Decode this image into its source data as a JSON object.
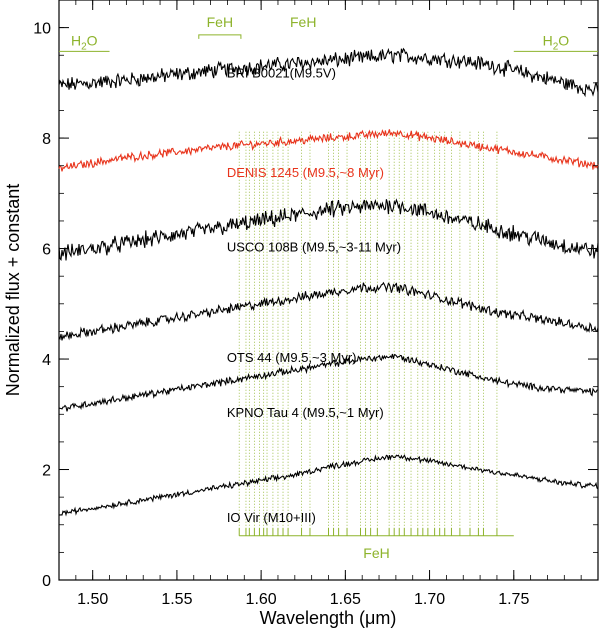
{
  "chart_data": {
    "type": "line",
    "title": "",
    "xlabel": "Wavelength (",
    "xlabel_unit": "μm",
    "xlabel_close": ")",
    "ylabel": "Normalized flux + constant",
    "xlim": [
      1.48,
      1.8
    ],
    "ylim": [
      0,
      10.5
    ],
    "x_ticks": [
      "1.50",
      "1.55",
      "1.60",
      "1.65",
      "1.70",
      "1.75"
    ],
    "y_ticks": [
      "0",
      "2",
      "4",
      "6",
      "8",
      "10"
    ],
    "colors": {
      "black": "#000000",
      "red": "#e8341c",
      "olive": "#8db32b",
      "axis": "#000000"
    },
    "series": [
      {
        "name": "BRI B0021(M9.5V)",
        "color": "#000000",
        "noise": 0.11,
        "label_xy": [
          1.62,
          9.1
        ],
        "x": [
          1.48,
          1.5,
          1.52,
          1.55,
          1.58,
          1.6,
          1.62,
          1.64,
          1.66,
          1.68,
          1.7,
          1.72,
          1.74,
          1.76,
          1.78,
          1.8
        ],
        "values": [
          8.95,
          9.0,
          9.05,
          9.15,
          9.25,
          9.3,
          9.35,
          9.4,
          9.45,
          9.5,
          9.45,
          9.4,
          9.3,
          9.15,
          9.0,
          8.85
        ]
      },
      {
        "name": "DENIS 1245 (M9.5,~8 Myr)",
        "color": "#e8341c",
        "noise": 0.06,
        "label_xy": [
          1.62,
          7.3
        ],
        "x": [
          1.48,
          1.5,
          1.52,
          1.55,
          1.58,
          1.6,
          1.62,
          1.64,
          1.66,
          1.68,
          1.7,
          1.72,
          1.74,
          1.76,
          1.78,
          1.8
        ],
        "values": [
          7.45,
          7.55,
          7.65,
          7.75,
          7.85,
          7.9,
          7.95,
          8.0,
          8.05,
          8.1,
          8.0,
          7.9,
          7.8,
          7.7,
          7.6,
          7.5
        ]
      },
      {
        "name": "USCO 108B (M9.5,~3-11 Myr)",
        "color": "#000000",
        "noise": 0.12,
        "label_xy": [
          1.62,
          5.95
        ],
        "x": [
          1.48,
          1.5,
          1.52,
          1.55,
          1.58,
          1.6,
          1.62,
          1.64,
          1.66,
          1.68,
          1.7,
          1.72,
          1.74,
          1.76,
          1.78,
          1.8
        ],
        "values": [
          5.9,
          6.0,
          6.1,
          6.25,
          6.4,
          6.5,
          6.6,
          6.7,
          6.75,
          6.8,
          6.65,
          6.5,
          6.35,
          6.2,
          6.05,
          5.95
        ]
      },
      {
        "name": "OTS 44 (M9.5,~3 Myr)",
        "color": "#000000",
        "noise": 0.07,
        "label_xy": [
          1.62,
          3.95
        ],
        "x": [
          1.48,
          1.5,
          1.52,
          1.55,
          1.58,
          1.6,
          1.62,
          1.64,
          1.66,
          1.68,
          1.7,
          1.72,
          1.74,
          1.76,
          1.78,
          1.8
        ],
        "values": [
          4.4,
          4.5,
          4.6,
          4.75,
          4.9,
          5.0,
          5.1,
          5.2,
          5.3,
          5.3,
          5.15,
          5.0,
          4.85,
          4.75,
          4.65,
          4.55
        ]
      },
      {
        "name": "KPNO Tau 4 (M9.5,~1 Myr)",
        "color": "#000000",
        "noise": 0.05,
        "label_xy": [
          1.62,
          2.95
        ],
        "x": [
          1.48,
          1.5,
          1.52,
          1.55,
          1.58,
          1.6,
          1.62,
          1.64,
          1.66,
          1.68,
          1.7,
          1.72,
          1.74,
          1.76,
          1.78,
          1.8
        ],
        "values": [
          3.1,
          3.2,
          3.3,
          3.45,
          3.6,
          3.7,
          3.8,
          3.9,
          4.0,
          4.05,
          3.9,
          3.75,
          3.6,
          3.5,
          3.45,
          3.4
        ]
      },
      {
        "name": "IO Vir (M10+III)",
        "color": "#000000",
        "noise": 0.04,
        "label_xy": [
          1.62,
          1.05
        ],
        "x": [
          1.48,
          1.5,
          1.52,
          1.55,
          1.58,
          1.6,
          1.62,
          1.64,
          1.66,
          1.68,
          1.7,
          1.72,
          1.74,
          1.76,
          1.78,
          1.8
        ],
        "values": [
          1.2,
          1.3,
          1.4,
          1.55,
          1.7,
          1.8,
          1.9,
          2.05,
          2.15,
          2.25,
          2.15,
          2.05,
          1.95,
          1.85,
          1.75,
          1.7
        ]
      }
    ],
    "feh_lines": [
      1.587,
      1.591,
      1.593,
      1.596,
      1.599,
      1.6015,
      1.6035,
      1.607,
      1.61,
      1.613,
      1.616,
      1.624,
      1.629,
      1.64,
      1.643,
      1.646,
      1.651,
      1.659,
      1.662,
      1.665,
      1.669,
      1.676,
      1.679,
      1.682,
      1.685,
      1.689,
      1.693,
      1.696,
      1.699,
      1.703,
      1.706,
      1.709,
      1.713,
      1.718,
      1.724,
      1.729,
      1.732,
      1.74
    ],
    "feh_main": {
      "label": "FeH",
      "range": [
        1.587,
        1.75
      ],
      "y": 0.8
    },
    "annotations": [
      {
        "id": "h2o-left",
        "label_base": "H",
        "label_sub": "2",
        "label_tail": "O",
        "range": [
          1.48,
          1.51
        ],
        "y": 9.75,
        "type": "h2o"
      },
      {
        "id": "feh-top-1",
        "label": "FeH",
        "range": [
          1.563,
          1.588
        ],
        "y": 10.05,
        "type": "bracket"
      },
      {
        "id": "feh-top-2",
        "label": "FeH",
        "range": [
          1.625,
          1.625
        ],
        "y": 10.05,
        "type": "text"
      },
      {
        "id": "h2o-right",
        "label_base": "H",
        "label_sub": "2",
        "label_tail": "O",
        "range": [
          1.75,
          1.8
        ],
        "y": 9.75,
        "type": "h2o"
      }
    ]
  }
}
